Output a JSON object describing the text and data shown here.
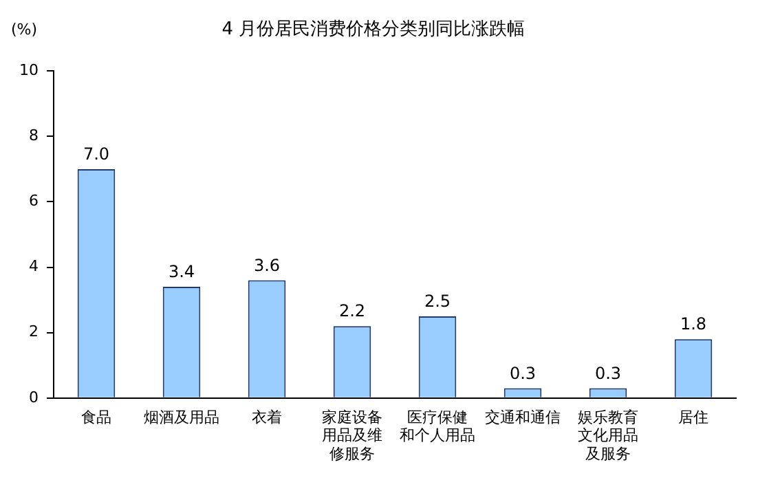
{
  "chart_data": {
    "type": "bar",
    "title": "4 月份居民消费价格分类别同比涨跌幅",
    "ylabel": "(%)",
    "categories": [
      "食品",
      "烟酒及用品",
      "衣着",
      "家庭设备用品及维修服务",
      "医疗保健和个人用品",
      "交通和通信",
      "娱乐教育文化用品及服务",
      "居住"
    ],
    "values": [
      7.0,
      3.4,
      3.6,
      2.2,
      2.5,
      0.3,
      0.3,
      1.8
    ],
    "value_labels": [
      "7.0",
      "3.4",
      "3.6",
      "2.2",
      "2.5",
      "0.3",
      "0.3",
      "1.8"
    ],
    "color": "#99ccff",
    "ylim": [
      0,
      10
    ],
    "yticks": [
      0,
      2,
      4,
      6,
      8,
      10
    ],
    "grid": false,
    "legend": false
  }
}
